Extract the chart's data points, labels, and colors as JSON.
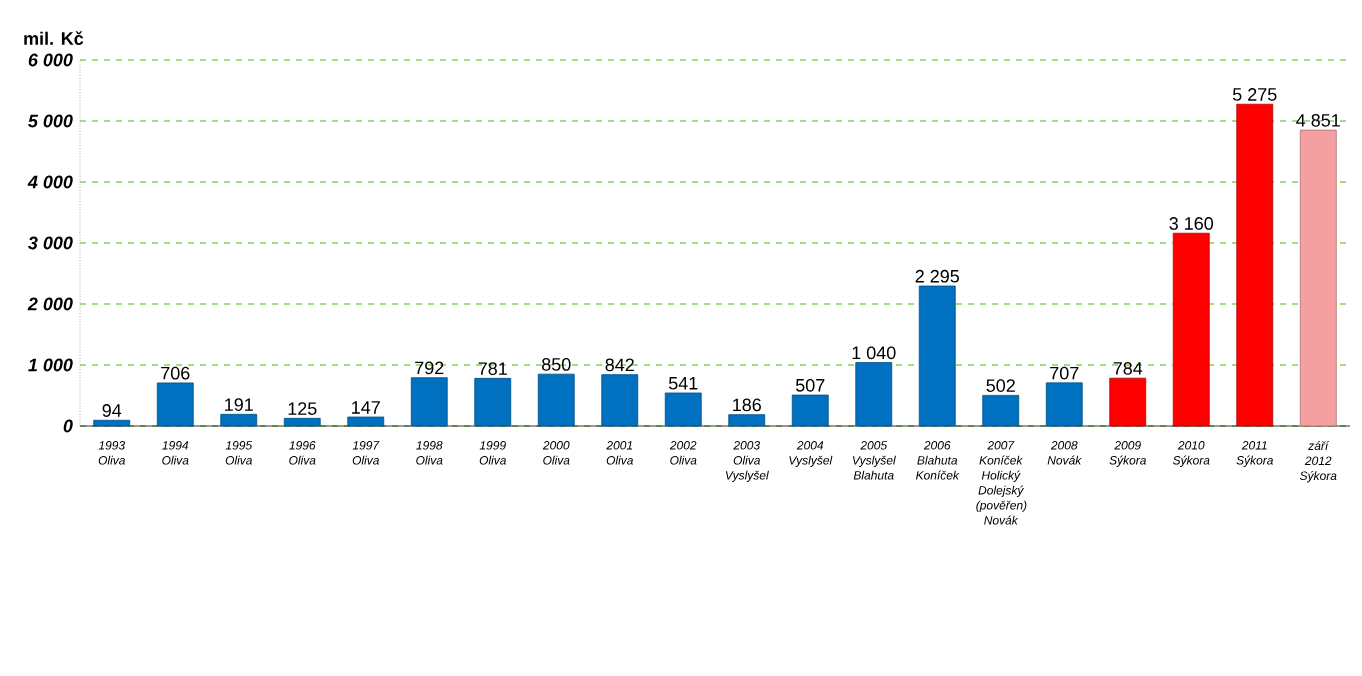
{
  "chart_data": {
    "type": "bar",
    "ylabel": "mil. Kč",
    "categories": [
      "1993 Oliva",
      "1994 Oliva",
      "1995 Oliva",
      "1996 Oliva",
      "1997 Oliva",
      "1998 Oliva",
      "1999 Oliva",
      "2000 Oliva",
      "2001 Oliva",
      "2002 Oliva",
      "2003 Oliva Vyslyšel",
      "2004 Vyslyšel",
      "2005 Vyslyšel Blahuta",
      "2006 Blahuta Koníček",
      "2007 Koníček Holický Dolejský (pověřen) Novák",
      "2008 Novák",
      "2009 Sýkora",
      "2010 Sýkora",
      "2011 Sýkora",
      "září 2012 Sýkora"
    ],
    "values": [
      94,
      706,
      191,
      125,
      147,
      792,
      781,
      850,
      842,
      541,
      186,
      507,
      1040,
      2295,
      502,
      707,
      784,
      3160,
      5275,
      4851
    ],
    "value_labels": [
      "94",
      "706",
      "191",
      "125",
      "147",
      "792",
      "781",
      "850",
      "842",
      "541",
      "186",
      "507",
      "1 040",
      "2 295",
      "502",
      "707",
      "784",
      "3 160",
      "5 275",
      "4 851"
    ],
    "colors": [
      "#0070c0",
      "#0070c0",
      "#0070c0",
      "#0070c0",
      "#0070c0",
      "#0070c0",
      "#0070c0",
      "#0070c0",
      "#0070c0",
      "#0070c0",
      "#0070c0",
      "#0070c0",
      "#0070c0",
      "#0070c0",
      "#0070c0",
      "#0070c0",
      "#ff0000",
      "#ff0000",
      "#ff0000",
      "#f4a0a0"
    ],
    "ylim": [
      0,
      6000
    ],
    "yticks": [
      {
        "value": 0,
        "label": "0"
      },
      {
        "value": 1000,
        "label": "1 000"
      },
      {
        "value": 2000,
        "label": "2 000"
      },
      {
        "value": 3000,
        "label": "3 000"
      },
      {
        "value": 4000,
        "label": "4 000"
      },
      {
        "value": 5000,
        "label": "5 000"
      },
      {
        "value": 6000,
        "label": "6 000"
      }
    ],
    "grid": "y"
  }
}
